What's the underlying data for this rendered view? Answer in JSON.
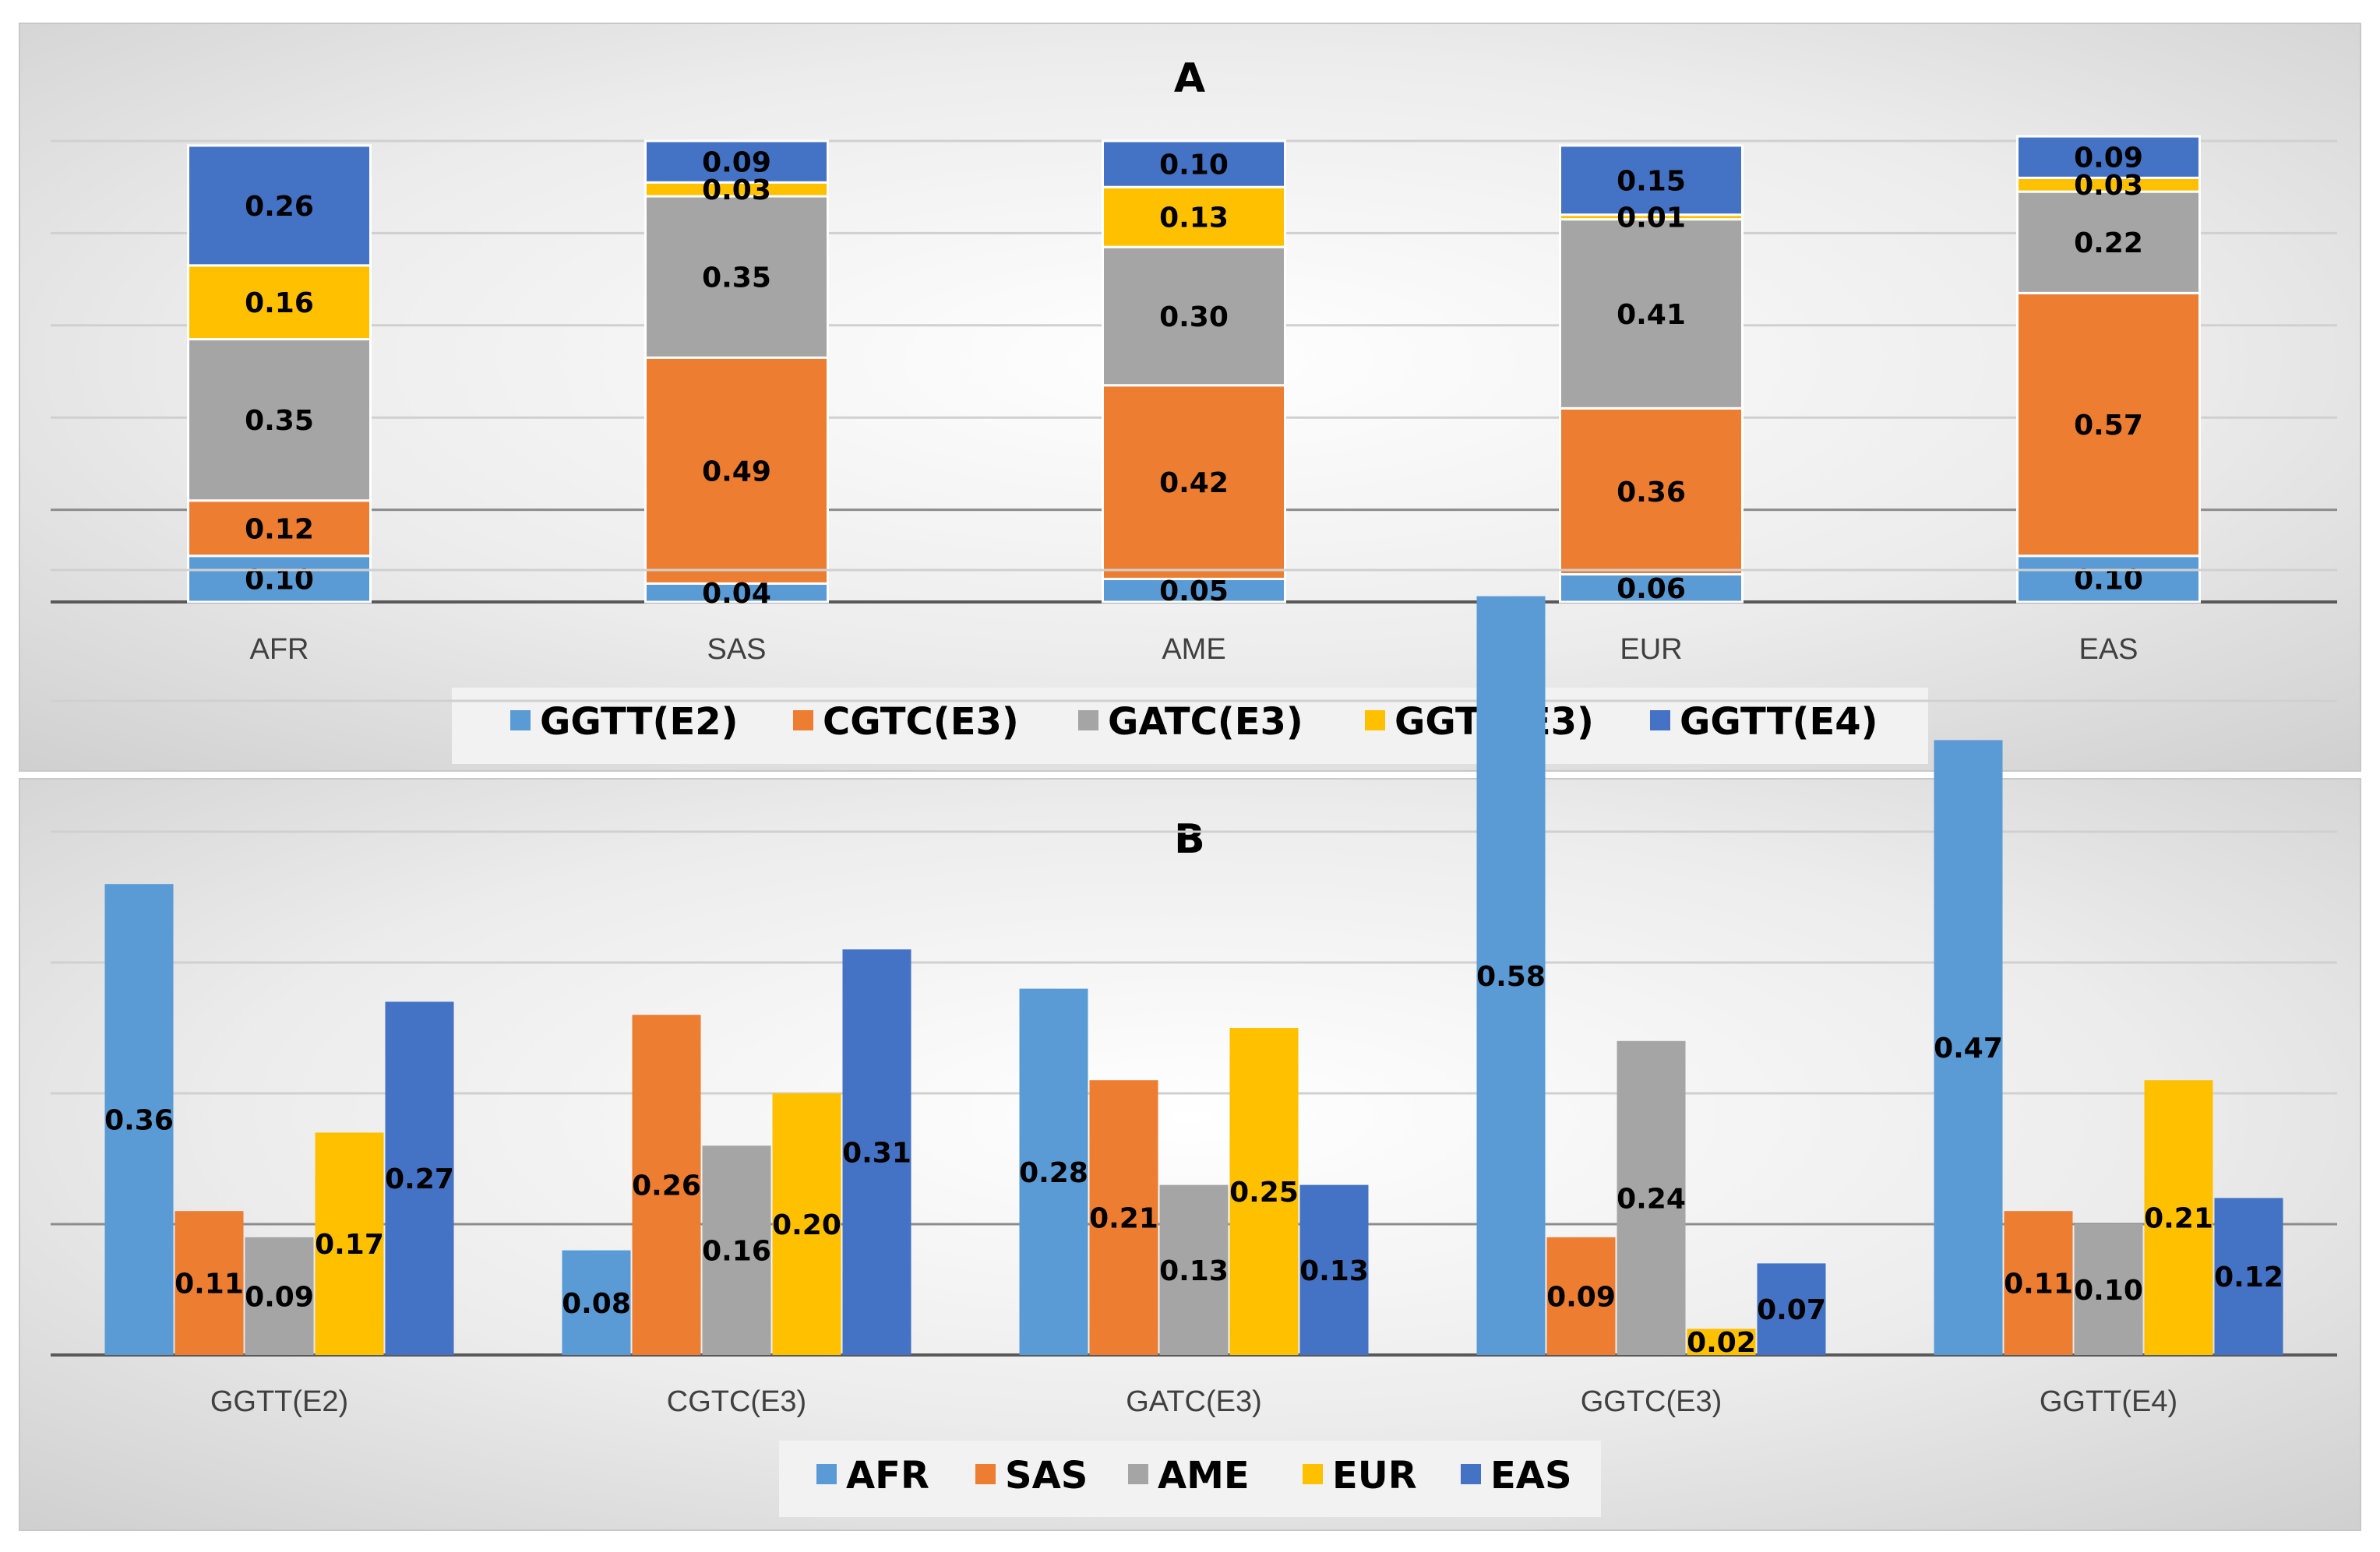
{
  "colors": {
    "GGTT(E2)": "#5b9bd5",
    "CGTC(E3)": "#ed7d31",
    "GATC(E3)": "#a5a5a5",
    "GGTC(E3)": "#ffc000",
    "GGTT(E4)": "#4472c4",
    "AFR": "#5b9bd5",
    "SAS": "#ed7d31",
    "AME": "#a5a5a5",
    "EUR": "#ffc000",
    "EAS": "#4472c4"
  },
  "chart_data": [
    {
      "type": "bar",
      "stacked": true,
      "title": "A",
      "categories": [
        "AFR",
        "SAS",
        "AME",
        "EUR",
        "EAS"
      ],
      "series": [
        {
          "name": "GGTT(E2)",
          "values": [
            0.1,
            0.04,
            0.05,
            0.06,
            0.1
          ]
        },
        {
          "name": "CGTC(E3)",
          "values": [
            0.12,
            0.49,
            0.42,
            0.36,
            0.57
          ]
        },
        {
          "name": "GATC(E3)",
          "values": [
            0.35,
            0.35,
            0.3,
            0.41,
            0.22
          ]
        },
        {
          "name": "GGTC(E3)",
          "values": [
            0.16,
            0.03,
            0.13,
            0.01,
            0.03
          ]
        },
        {
          "name": "GGTT(E4)",
          "values": [
            0.26,
            0.09,
            0.1,
            0.15,
            0.09
          ]
        }
      ],
      "ylim": [
        0,
        1
      ],
      "legend": "bottom"
    },
    {
      "type": "bar",
      "stacked": false,
      "title": "B",
      "categories": [
        "GGTT(E2)",
        "CGTC(E3)",
        "GATC(E3)",
        "GGTC(E3)",
        "GGTT(E4)"
      ],
      "series": [
        {
          "name": "AFR",
          "values": [
            0.36,
            0.08,
            0.28,
            0.58,
            0.47
          ]
        },
        {
          "name": "SAS",
          "values": [
            0.11,
            0.26,
            0.21,
            0.09,
            0.11
          ]
        },
        {
          "name": "AME",
          "values": [
            0.09,
            0.16,
            0.13,
            0.24,
            0.1
          ]
        },
        {
          "name": "EUR",
          "values": [
            0.17,
            0.2,
            0.25,
            0.02,
            0.21
          ]
        },
        {
          "name": "EAS",
          "values": [
            0.27,
            0.31,
            0.13,
            0.07,
            0.12
          ]
        }
      ],
      "ylim": [
        0,
        0.6
      ],
      "legend": "bottom"
    }
  ]
}
